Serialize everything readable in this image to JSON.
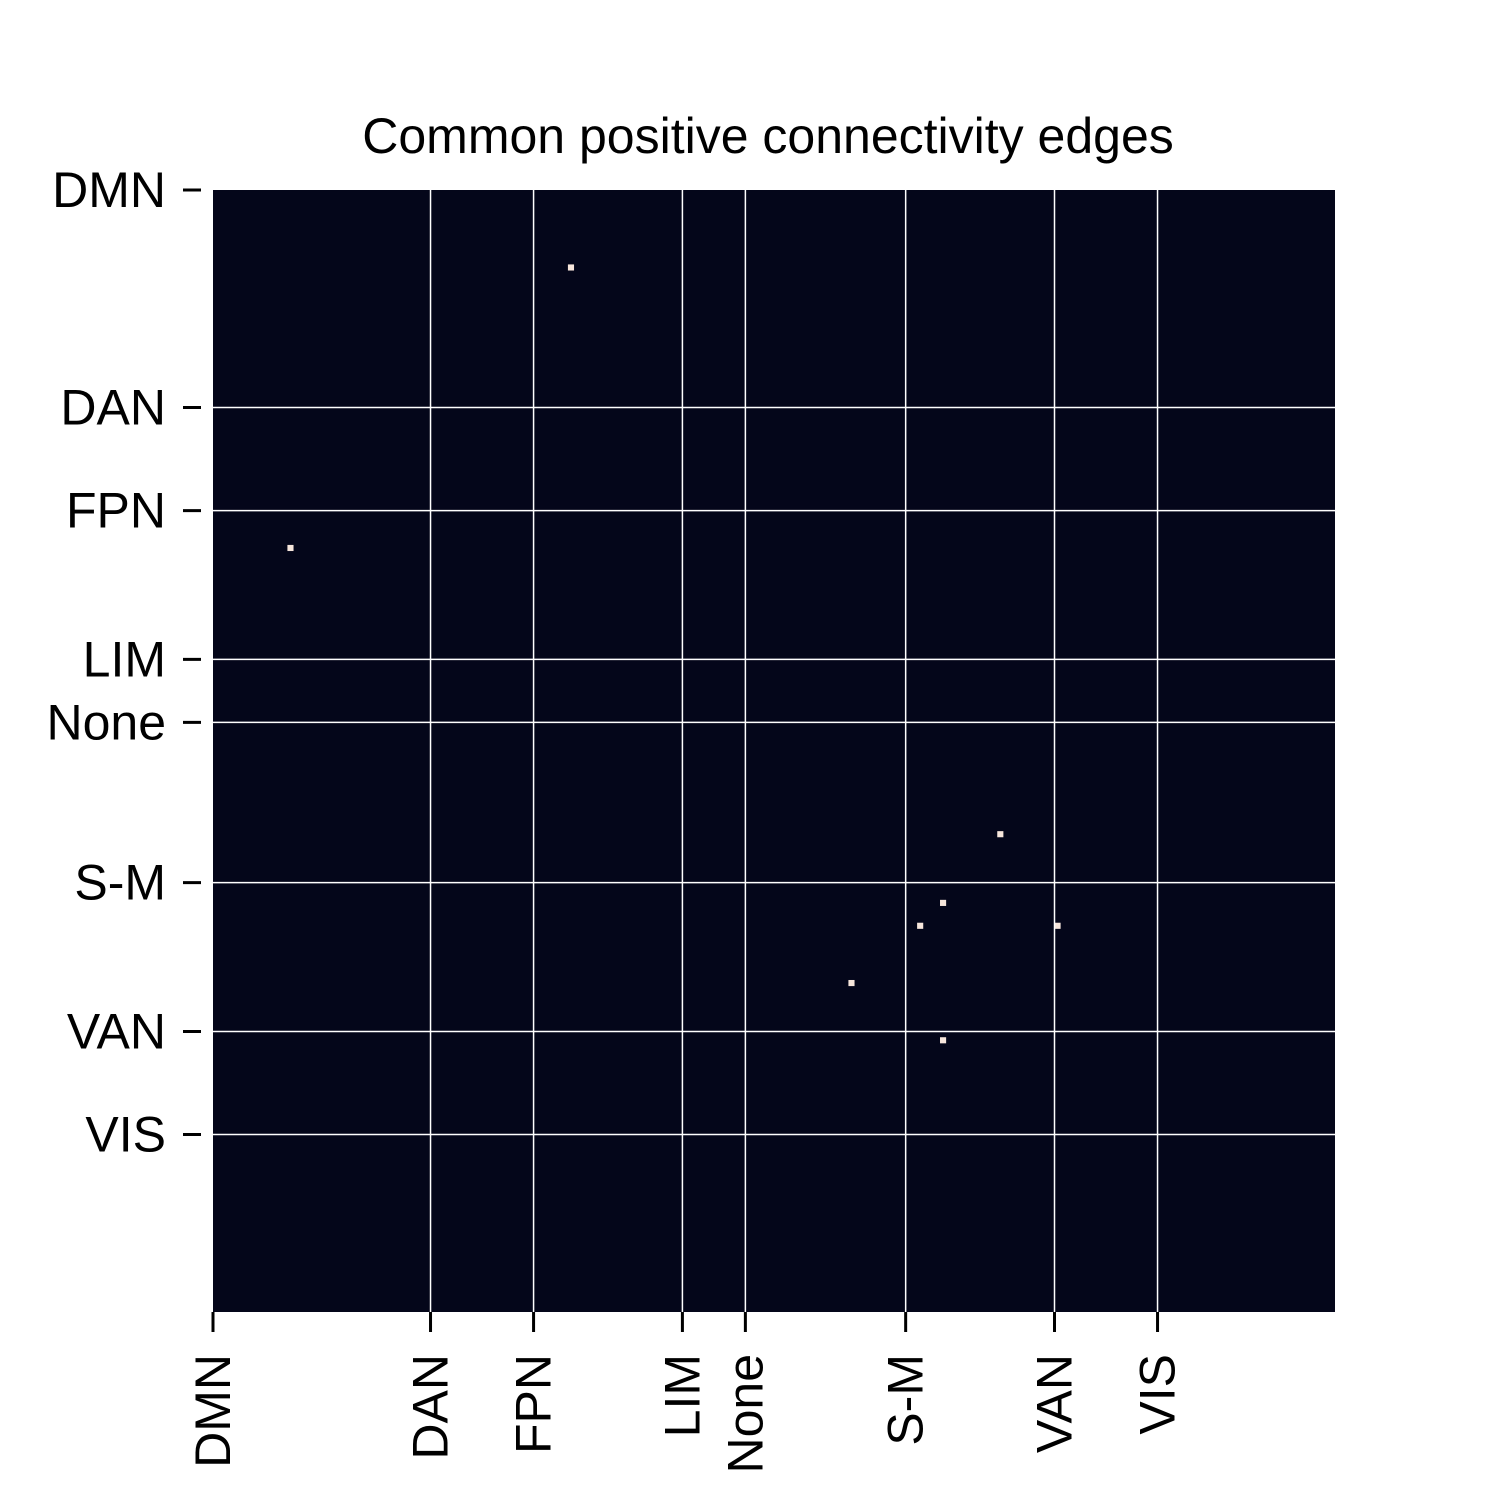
{
  "chart_data": {
    "type": "heatmap",
    "title": "Common positive connectivity edges",
    "xlabel": "",
    "ylabel": "",
    "matrix_size": 196,
    "x_ticks": [
      {
        "label": "DMN",
        "index": 0
      },
      {
        "label": "DAN",
        "index": 38
      },
      {
        "label": "FPN",
        "index": 56
      },
      {
        "label": "LIM",
        "index": 82
      },
      {
        "label": "None",
        "index": 93
      },
      {
        "label": "S-M",
        "index": 121
      },
      {
        "label": "VAN",
        "index": 147
      },
      {
        "label": "VIS",
        "index": 165
      }
    ],
    "y_ticks": [
      {
        "label": "DMN",
        "index": 0
      },
      {
        "label": "DAN",
        "index": 38
      },
      {
        "label": "FPN",
        "index": 56
      },
      {
        "label": "LIM",
        "index": 82
      },
      {
        "label": "None",
        "index": 93
      },
      {
        "label": "S-M",
        "index": 121
      },
      {
        "label": "VAN",
        "index": 147
      },
      {
        "label": "VIS",
        "index": 165
      }
    ],
    "edges": [
      {
        "row": 13,
        "col": 62
      },
      {
        "row": 62,
        "col": 13
      },
      {
        "row": 112,
        "col": 137
      },
      {
        "row": 124,
        "col": 127
      },
      {
        "row": 128,
        "col": 123
      },
      {
        "row": 128,
        "col": 147
      },
      {
        "row": 138,
        "col": 111
      },
      {
        "row": 148,
        "col": 127
      }
    ],
    "grid": true,
    "legend": "none",
    "colors": {
      "background": "#04061a",
      "edge": "#f7e6dc",
      "grid": "#ffffff"
    }
  }
}
